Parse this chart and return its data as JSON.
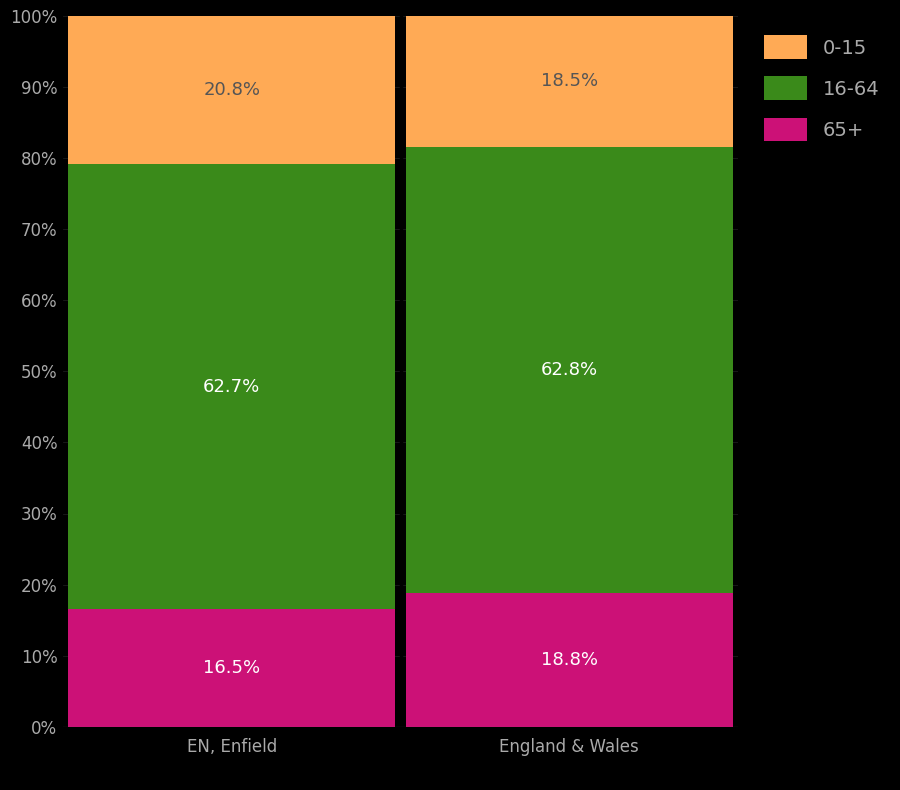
{
  "categories": [
    "EN, Enfield",
    "England & Wales"
  ],
  "segments": {
    "65+": [
      16.5,
      18.8
    ],
    "16-64": [
      62.7,
      62.8
    ],
    "0-15": [
      20.8,
      18.5
    ]
  },
  "colors": {
    "65+": "#CC1177",
    "16-64": "#3A8A1A",
    "0-15": "#FFAA55"
  },
  "label_colors": {
    "65+": "#FFFFFF",
    "16-64": "#FFFFFF",
    "0-15": "#555555"
  },
  "background_color": "#000000",
  "text_color": "#AAAAAA",
  "ylim": [
    0,
    100
  ],
  "yticks": [
    0,
    10,
    20,
    30,
    40,
    50,
    60,
    70,
    80,
    90,
    100
  ],
  "ytick_labels": [
    "0%",
    "10%",
    "20%",
    "30%",
    "40%",
    "50%",
    "60%",
    "70%",
    "80%",
    "90%",
    "100%"
  ],
  "legend_labels": [
    "0-15",
    "16-64",
    "65+"
  ],
  "legend_colors": [
    "#FFAA55",
    "#3A8A1A",
    "#CC1177"
  ],
  "label_fontsize": 13,
  "tick_fontsize": 12,
  "legend_fontsize": 14
}
